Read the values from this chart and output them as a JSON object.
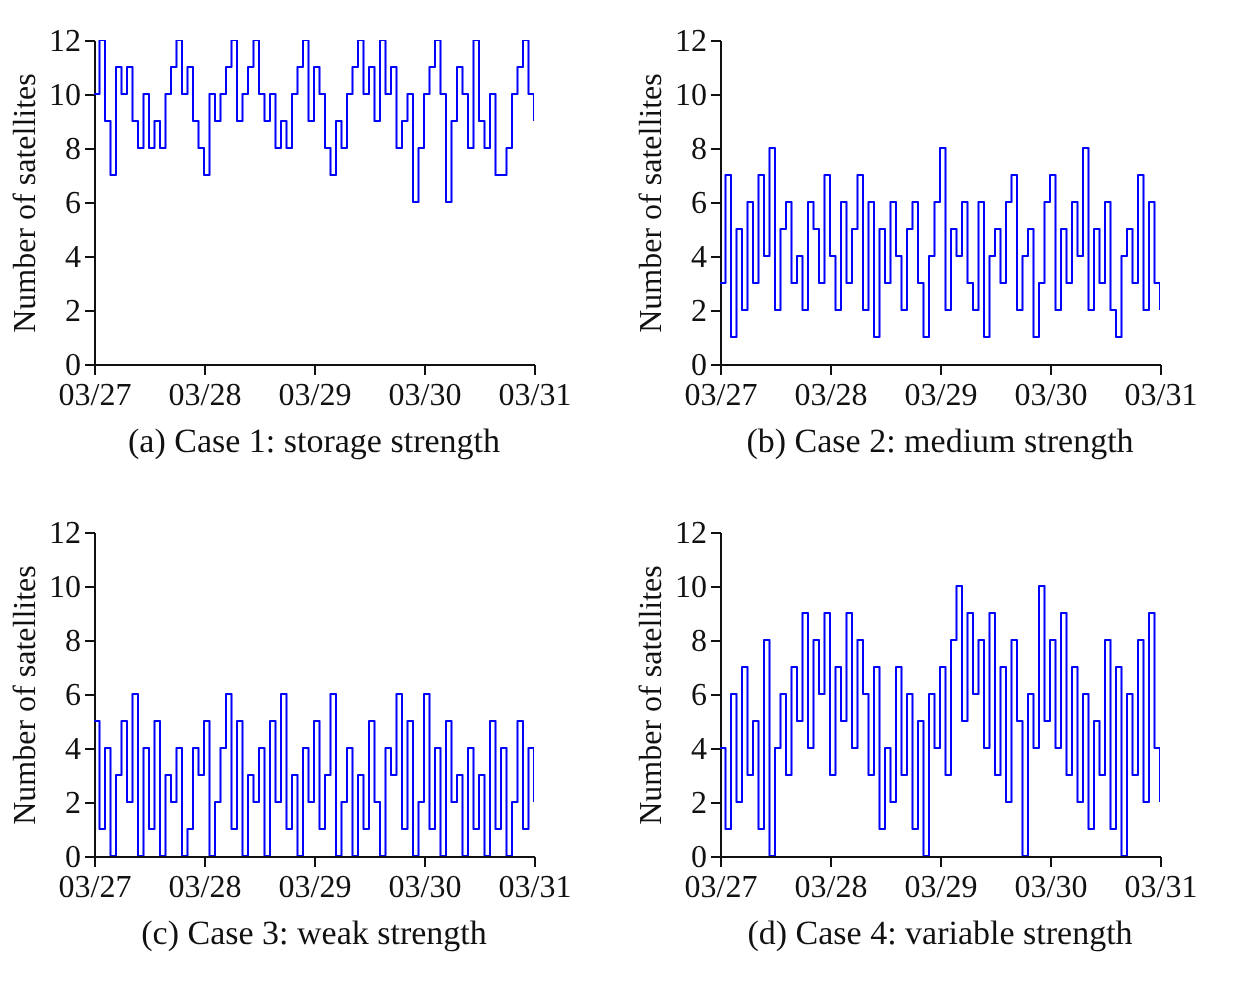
{
  "chart_data": [
    {
      "type": "step",
      "title": "(a) Case 1: storage strength",
      "ylabel": "Number of satellites",
      "xlim": [
        "--03-27",
        "--03-31"
      ],
      "ylim": [
        0,
        12
      ],
      "xticks": [
        {
          "value": "--03-27",
          "label": "03/27"
        },
        {
          "value": "--03-28",
          "label": "03/28"
        },
        {
          "value": "--03-29",
          "label": "03/29"
        },
        {
          "value": "--03-30",
          "label": "03/30"
        },
        {
          "value": "--03-31",
          "label": "03/31"
        }
      ],
      "yticks": [
        0,
        2,
        4,
        6,
        8,
        10,
        12
      ],
      "x": [
        "--03-27T00:00",
        "--03-27T01:12",
        "--03-27T02:24",
        "--03-27T03:36",
        "--03-27T04:48",
        "--03-27T06:00",
        "--03-27T07:12",
        "--03-27T08:24",
        "--03-27T09:36",
        "--03-27T10:48",
        "--03-27T12:00",
        "--03-27T13:12",
        "--03-27T14:24",
        "--03-27T15:36",
        "--03-27T16:48",
        "--03-27T18:00",
        "--03-27T19:12",
        "--03-27T20:24",
        "--03-27T21:36",
        "--03-27T22:48",
        "--03-28T00:00",
        "--03-28T01:12",
        "--03-28T02:24",
        "--03-28T03:36",
        "--03-28T04:48",
        "--03-28T06:00",
        "--03-28T07:12",
        "--03-28T08:24",
        "--03-28T09:36",
        "--03-28T10:48",
        "--03-28T12:00",
        "--03-28T13:12",
        "--03-28T14:24",
        "--03-28T15:36",
        "--03-28T16:48",
        "--03-28T18:00",
        "--03-28T19:12",
        "--03-28T20:24",
        "--03-28T21:36",
        "--03-28T22:48",
        "--03-29T00:00",
        "--03-29T01:12",
        "--03-29T02:24",
        "--03-29T03:36",
        "--03-29T04:48",
        "--03-29T06:00",
        "--03-29T07:12",
        "--03-29T08:24",
        "--03-29T09:36",
        "--03-29T10:48",
        "--03-29T12:00",
        "--03-29T13:12",
        "--03-29T14:24",
        "--03-29T15:36",
        "--03-29T16:48",
        "--03-29T18:00",
        "--03-29T19:12",
        "--03-29T20:24",
        "--03-29T21:36",
        "--03-29T22:48",
        "--03-30T00:00",
        "--03-30T01:12",
        "--03-30T02:24",
        "--03-30T03:36",
        "--03-30T04:48",
        "--03-30T06:00",
        "--03-30T07:12",
        "--03-30T08:24",
        "--03-30T09:36",
        "--03-30T10:48",
        "--03-30T12:00",
        "--03-30T13:12",
        "--03-30T14:24",
        "--03-30T15:36",
        "--03-30T16:48",
        "--03-30T18:00",
        "--03-30T19:12",
        "--03-30T20:24",
        "--03-30T21:36",
        "--03-30T22:48",
        "--03-31T00:00"
      ],
      "series": [
        {
          "color": "#0000ff",
          "values": [
            10,
            12,
            9,
            7,
            11,
            10,
            11,
            9,
            8,
            10,
            8,
            9,
            8,
            10,
            11,
            12,
            10,
            11,
            9,
            8,
            7,
            10,
            9,
            10,
            11,
            12,
            9,
            10,
            11,
            12,
            10,
            9,
            10,
            8,
            9,
            8,
            10,
            11,
            12,
            9,
            11,
            10,
            8,
            7,
            9,
            8,
            10,
            11,
            12,
            10,
            11,
            9,
            12,
            10,
            11,
            8,
            9,
            10,
            6,
            8,
            10,
            11,
            12,
            10,
            6,
            9,
            11,
            10,
            8,
            12,
            9,
            8,
            10,
            7,
            7,
            8,
            10,
            11,
            12,
            10,
            9
          ]
        }
      ]
    },
    {
      "type": "step",
      "title": "(b) Case 2: medium strength",
      "ylabel": "Number of satellites",
      "xlim": [
        "--03-27",
        "--03-31"
      ],
      "ylim": [
        0,
        12
      ],
      "xticks": [
        {
          "value": "--03-27",
          "label": "03/27"
        },
        {
          "value": "--03-28",
          "label": "03/28"
        },
        {
          "value": "--03-29",
          "label": "03/29"
        },
        {
          "value": "--03-30",
          "label": "03/30"
        },
        {
          "value": "--03-31",
          "label": "03/31"
        }
      ],
      "yticks": [
        0,
        2,
        4,
        6,
        8,
        10,
        12
      ],
      "x": [
        "--03-27T00:00",
        "--03-27T01:12",
        "--03-27T02:24",
        "--03-27T03:36",
        "--03-27T04:48",
        "--03-27T06:00",
        "--03-27T07:12",
        "--03-27T08:24",
        "--03-27T09:36",
        "--03-27T10:48",
        "--03-27T12:00",
        "--03-27T13:12",
        "--03-27T14:24",
        "--03-27T15:36",
        "--03-27T16:48",
        "--03-27T18:00",
        "--03-27T19:12",
        "--03-27T20:24",
        "--03-27T21:36",
        "--03-27T22:48",
        "--03-28T00:00",
        "--03-28T01:12",
        "--03-28T02:24",
        "--03-28T03:36",
        "--03-28T04:48",
        "--03-28T06:00",
        "--03-28T07:12",
        "--03-28T08:24",
        "--03-28T09:36",
        "--03-28T10:48",
        "--03-28T12:00",
        "--03-28T13:12",
        "--03-28T14:24",
        "--03-28T15:36",
        "--03-28T16:48",
        "--03-28T18:00",
        "--03-28T19:12",
        "--03-28T20:24",
        "--03-28T21:36",
        "--03-28T22:48",
        "--03-29T00:00",
        "--03-29T01:12",
        "--03-29T02:24",
        "--03-29T03:36",
        "--03-29T04:48",
        "--03-29T06:00",
        "--03-29T07:12",
        "--03-29T08:24",
        "--03-29T09:36",
        "--03-29T10:48",
        "--03-29T12:00",
        "--03-29T13:12",
        "--03-29T14:24",
        "--03-29T15:36",
        "--03-29T16:48",
        "--03-29T18:00",
        "--03-29T19:12",
        "--03-29T20:24",
        "--03-29T21:36",
        "--03-29T22:48",
        "--03-30T00:00",
        "--03-30T01:12",
        "--03-30T02:24",
        "--03-30T03:36",
        "--03-30T04:48",
        "--03-30T06:00",
        "--03-30T07:12",
        "--03-30T08:24",
        "--03-30T09:36",
        "--03-30T10:48",
        "--03-30T12:00",
        "--03-30T13:12",
        "--03-30T14:24",
        "--03-30T15:36",
        "--03-30T16:48",
        "--03-30T18:00",
        "--03-30T19:12",
        "--03-30T20:24",
        "--03-30T21:36",
        "--03-30T22:48",
        "--03-31T00:00"
      ],
      "series": [
        {
          "color": "#0000ff",
          "values": [
            3,
            7,
            1,
            5,
            2,
            6,
            3,
            7,
            4,
            8,
            2,
            5,
            6,
            3,
            4,
            2,
            6,
            5,
            3,
            7,
            4,
            2,
            6,
            3,
            5,
            7,
            2,
            6,
            1,
            5,
            3,
            6,
            4,
            2,
            5,
            6,
            3,
            1,
            4,
            6,
            8,
            2,
            5,
            4,
            6,
            3,
            2,
            6,
            1,
            4,
            5,
            3,
            6,
            7,
            2,
            4,
            5,
            1,
            3,
            6,
            7,
            2,
            5,
            3,
            6,
            4,
            8,
            2,
            5,
            3,
            6,
            2,
            1,
            4,
            5,
            3,
            7,
            2,
            6,
            3,
            2
          ]
        }
      ]
    },
    {
      "type": "step",
      "title": "(c) Case 3: weak strength",
      "ylabel": "Number of satellites",
      "xlim": [
        "--03-27",
        "--03-31"
      ],
      "ylim": [
        0,
        12
      ],
      "xticks": [
        {
          "value": "--03-27",
          "label": "03/27"
        },
        {
          "value": "--03-28",
          "label": "03/28"
        },
        {
          "value": "--03-29",
          "label": "03/29"
        },
        {
          "value": "--03-30",
          "label": "03/30"
        },
        {
          "value": "--03-31",
          "label": "03/31"
        }
      ],
      "yticks": [
        0,
        2,
        4,
        6,
        8,
        10,
        12
      ],
      "x": [
        "--03-27T00:00",
        "--03-27T01:12",
        "--03-27T02:24",
        "--03-27T03:36",
        "--03-27T04:48",
        "--03-27T06:00",
        "--03-27T07:12",
        "--03-27T08:24",
        "--03-27T09:36",
        "--03-27T10:48",
        "--03-27T12:00",
        "--03-27T13:12",
        "--03-27T14:24",
        "--03-27T15:36",
        "--03-27T16:48",
        "--03-27T18:00",
        "--03-27T19:12",
        "--03-27T20:24",
        "--03-27T21:36",
        "--03-27T22:48",
        "--03-28T00:00",
        "--03-28T01:12",
        "--03-28T02:24",
        "--03-28T03:36",
        "--03-28T04:48",
        "--03-28T06:00",
        "--03-28T07:12",
        "--03-28T08:24",
        "--03-28T09:36",
        "--03-28T10:48",
        "--03-28T12:00",
        "--03-28T13:12",
        "--03-28T14:24",
        "--03-28T15:36",
        "--03-28T16:48",
        "--03-28T18:00",
        "--03-28T19:12",
        "--03-28T20:24",
        "--03-28T21:36",
        "--03-28T22:48",
        "--03-29T00:00",
        "--03-29T01:12",
        "--03-29T02:24",
        "--03-29T03:36",
        "--03-29T04:48",
        "--03-29T06:00",
        "--03-29T07:12",
        "--03-29T08:24",
        "--03-29T09:36",
        "--03-29T10:48",
        "--03-29T12:00",
        "--03-29T13:12",
        "--03-29T14:24",
        "--03-29T15:36",
        "--03-29T16:48",
        "--03-29T18:00",
        "--03-29T19:12",
        "--03-29T20:24",
        "--03-29T21:36",
        "--03-29T22:48",
        "--03-30T00:00",
        "--03-30T01:12",
        "--03-30T02:24",
        "--03-30T03:36",
        "--03-30T04:48",
        "--03-30T06:00",
        "--03-30T07:12",
        "--03-30T08:24",
        "--03-30T09:36",
        "--03-30T10:48",
        "--03-30T12:00",
        "--03-30T13:12",
        "--03-30T14:24",
        "--03-30T15:36",
        "--03-30T16:48",
        "--03-30T18:00",
        "--03-30T19:12",
        "--03-30T20:24",
        "--03-30T21:36",
        "--03-30T22:48",
        "--03-31T00:00"
      ],
      "series": [
        {
          "color": "#0000ff",
          "values": [
            5,
            1,
            4,
            0,
            3,
            5,
            2,
            6,
            0,
            4,
            1,
            5,
            0,
            3,
            2,
            4,
            0,
            1,
            4,
            3,
            5,
            0,
            2,
            4,
            6,
            1,
            5,
            0,
            3,
            2,
            4,
            0,
            5,
            2,
            6,
            1,
            3,
            0,
            4,
            2,
            5,
            1,
            3,
            6,
            0,
            2,
            4,
            0,
            3,
            1,
            5,
            2,
            0,
            4,
            3,
            6,
            1,
            5,
            0,
            2,
            6,
            1,
            4,
            0,
            5,
            2,
            3,
            0,
            4,
            1,
            3,
            0,
            5,
            1,
            4,
            0,
            2,
            5,
            1,
            4,
            2
          ]
        }
      ]
    },
    {
      "type": "step",
      "title": "(d) Case 4: variable strength",
      "ylabel": "Number of satellites",
      "xlim": [
        "--03-27",
        "--03-31"
      ],
      "ylim": [
        0,
        12
      ],
      "xticks": [
        {
          "value": "--03-27",
          "label": "03/27"
        },
        {
          "value": "--03-28",
          "label": "03/28"
        },
        {
          "value": "--03-29",
          "label": "03/29"
        },
        {
          "value": "--03-30",
          "label": "03/30"
        },
        {
          "value": "--03-31",
          "label": "03/31"
        }
      ],
      "yticks": [
        0,
        2,
        4,
        6,
        8,
        10,
        12
      ],
      "x": [
        "--03-27T00:00",
        "--03-27T01:12",
        "--03-27T02:24",
        "--03-27T03:36",
        "--03-27T04:48",
        "--03-27T06:00",
        "--03-27T07:12",
        "--03-27T08:24",
        "--03-27T09:36",
        "--03-27T10:48",
        "--03-27T12:00",
        "--03-27T13:12",
        "--03-27T14:24",
        "--03-27T15:36",
        "--03-27T16:48",
        "--03-27T18:00",
        "--03-27T19:12",
        "--03-27T20:24",
        "--03-27T21:36",
        "--03-27T22:48",
        "--03-28T00:00",
        "--03-28T01:12",
        "--03-28T02:24",
        "--03-28T03:36",
        "--03-28T04:48",
        "--03-28T06:00",
        "--03-28T07:12",
        "--03-28T08:24",
        "--03-28T09:36",
        "--03-28T10:48",
        "--03-28T12:00",
        "--03-28T13:12",
        "--03-28T14:24",
        "--03-28T15:36",
        "--03-28T16:48",
        "--03-28T18:00",
        "--03-28T19:12",
        "--03-28T20:24",
        "--03-28T21:36",
        "--03-28T22:48",
        "--03-29T00:00",
        "--03-29T01:12",
        "--03-29T02:24",
        "--03-29T03:36",
        "--03-29T04:48",
        "--03-29T06:00",
        "--03-29T07:12",
        "--03-29T08:24",
        "--03-29T09:36",
        "--03-29T10:48",
        "--03-29T12:00",
        "--03-29T13:12",
        "--03-29T14:24",
        "--03-29T15:36",
        "--03-29T16:48",
        "--03-29T18:00",
        "--03-29T19:12",
        "--03-29T20:24",
        "--03-29T21:36",
        "--03-29T22:48",
        "--03-30T00:00",
        "--03-30T01:12",
        "--03-30T02:24",
        "--03-30T03:36",
        "--03-30T04:48",
        "--03-30T06:00",
        "--03-30T07:12",
        "--03-30T08:24",
        "--03-30T09:36",
        "--03-30T10:48",
        "--03-30T12:00",
        "--03-30T13:12",
        "--03-30T14:24",
        "--03-30T15:36",
        "--03-30T16:48",
        "--03-30T18:00",
        "--03-30T19:12",
        "--03-30T20:24",
        "--03-30T21:36",
        "--03-30T22:48",
        "--03-31T00:00"
      ],
      "series": [
        {
          "color": "#0000ff",
          "values": [
            4,
            1,
            6,
            2,
            7,
            3,
            5,
            1,
            8,
            0,
            4,
            6,
            3,
            7,
            5,
            9,
            4,
            8,
            6,
            9,
            3,
            7,
            5,
            9,
            4,
            8,
            6,
            3,
            7,
            1,
            4,
            2,
            7,
            3,
            6,
            1,
            5,
            0,
            6,
            4,
            7,
            3,
            8,
            10,
            5,
            9,
            6,
            8,
            4,
            9,
            3,
            7,
            2,
            8,
            5,
            0,
            6,
            4,
            10,
            5,
            8,
            4,
            9,
            3,
            7,
            2,
            6,
            1,
            5,
            3,
            8,
            1,
            7,
            0,
            6,
            3,
            8,
            2,
            9,
            4,
            2
          ]
        }
      ]
    }
  ]
}
